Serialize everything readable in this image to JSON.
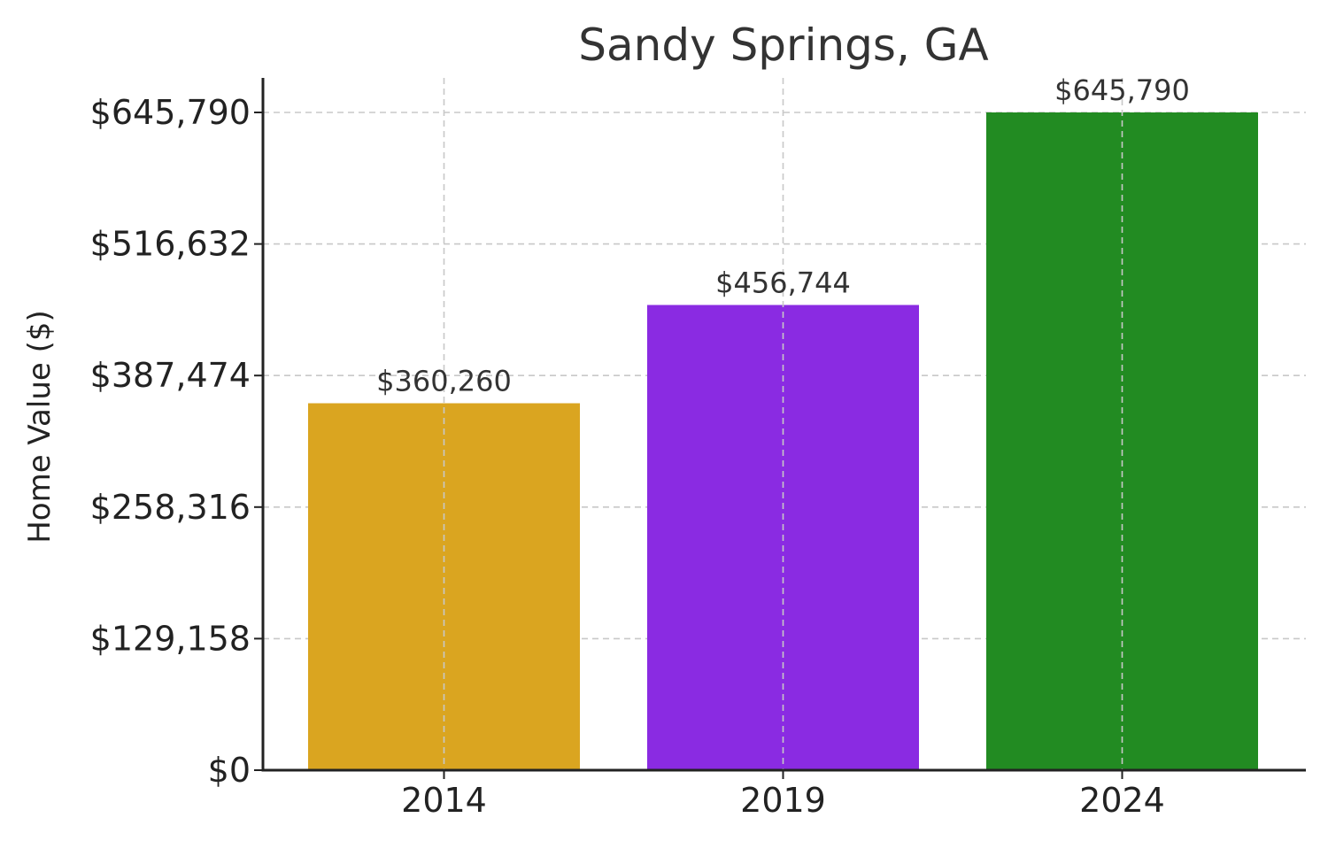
{
  "chart_data": {
    "type": "bar",
    "title": "Sandy Springs, GA",
    "xlabel": "",
    "ylabel": "Home Value ($)",
    "categories": [
      "2014",
      "2019",
      "2024"
    ],
    "values": [
      360260,
      456744,
      645790
    ],
    "value_labels": [
      "$360,260",
      "$456,744",
      "$645,790"
    ],
    "colors": [
      "#DAA520",
      "#8A2BE2",
      "#228B22"
    ],
    "ylim": [
      0,
      645790
    ],
    "yticks": [
      0,
      129158,
      258316,
      387474,
      516632,
      645790
    ],
    "ytick_labels": [
      "$0",
      "$129,158",
      "$258,316",
      "$387,474",
      "$516,632",
      "$645,790"
    ],
    "grid": true,
    "legend": "none"
  }
}
